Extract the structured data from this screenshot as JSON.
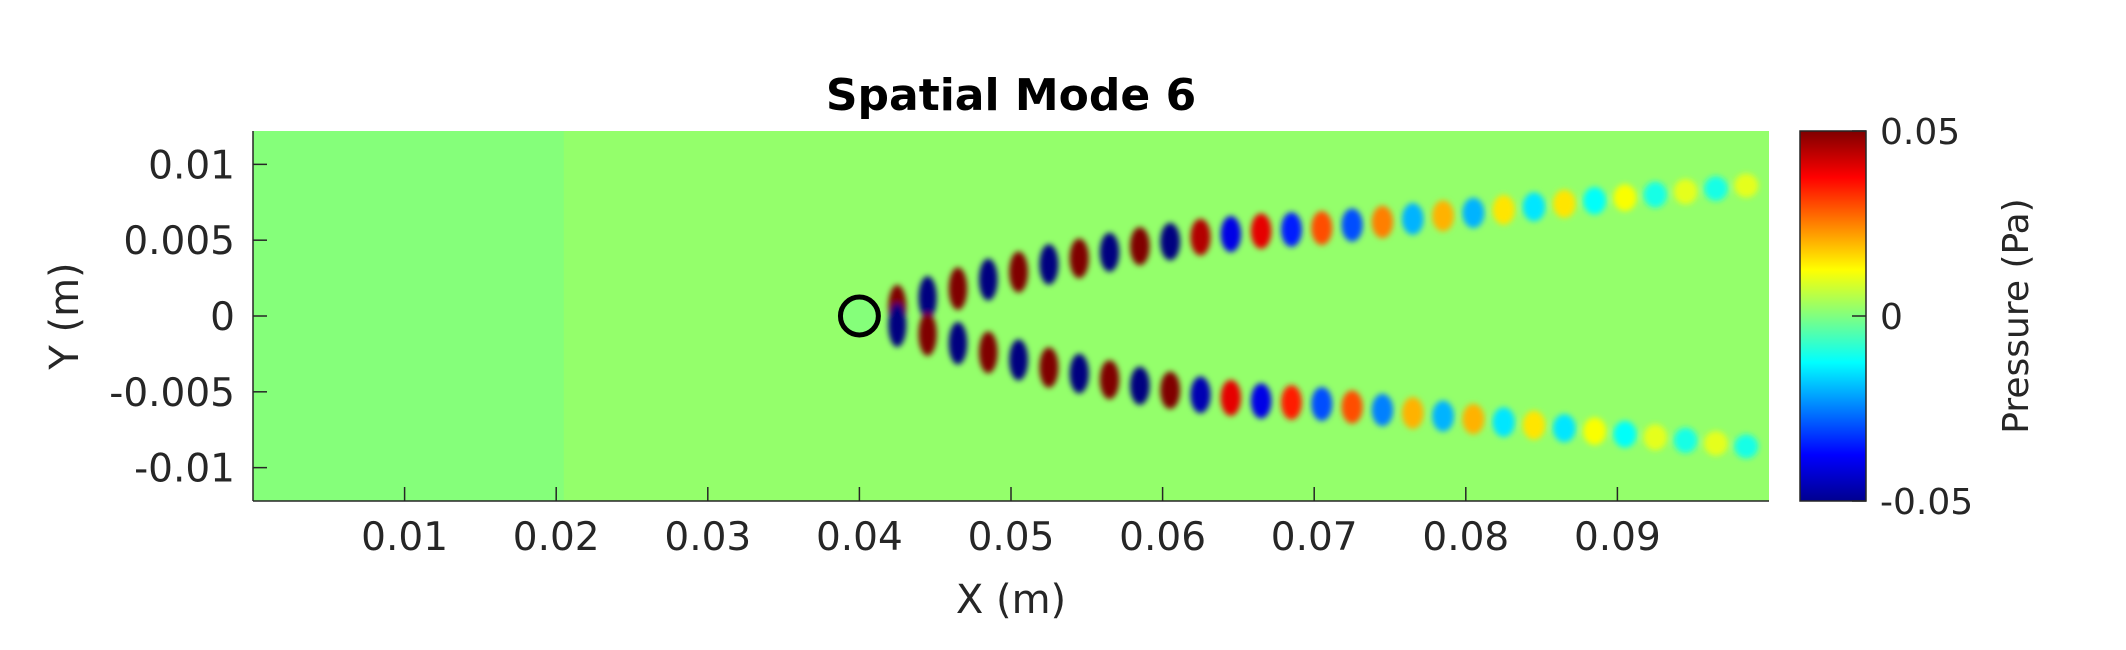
{
  "chart_data": {
    "type": "heatmap",
    "title": "Spatial Mode 6",
    "xlabel": "X (m)",
    "ylabel": "Y (m)",
    "xlim": [
      0,
      0.1
    ],
    "ylim": [
      -0.0122,
      0.0122
    ],
    "xticks": [
      0.01,
      0.02,
      0.03,
      0.04,
      0.05,
      0.06,
      0.07,
      0.08,
      0.09
    ],
    "xtick_labels": [
      "0.01",
      "0.02",
      "0.03",
      "0.04",
      "0.05",
      "0.06",
      "0.07",
      "0.08",
      "0.09"
    ],
    "yticks": [
      0.01,
      0.005,
      0,
      -0.005,
      -0.01
    ],
    "ytick_labels": [
      "0.01",
      "0.005",
      "0",
      "-0.005",
      "-0.01"
    ],
    "colormap": "jet",
    "colorbar": {
      "label": "Pressure (Pa)",
      "clim": [
        -0.05,
        0.05
      ],
      "ticks": [
        0.05,
        0,
        -0.05
      ],
      "tick_labels": [
        "0.05",
        "0",
        "-0.05"
      ]
    },
    "cylinder": {
      "x": 0.04,
      "y": 0,
      "diameter": 0.0025
    },
    "wake_rows": [
      {
        "name": "upper",
        "x": [
          0.0425,
          0.0445,
          0.0465,
          0.0485,
          0.0505,
          0.0525,
          0.0545,
          0.0565,
          0.0585,
          0.0605,
          0.0625,
          0.0645,
          0.0665,
          0.0685,
          0.0705,
          0.0725,
          0.0745,
          0.0765,
          0.0785,
          0.0805,
          0.0825,
          0.0845,
          0.0865,
          0.0885,
          0.0905,
          0.0925,
          0.0945,
          0.0965,
          0.0985
        ],
        "y": [
          0.0006,
          0.0012,
          0.0018,
          0.0024,
          0.0029,
          0.0034,
          0.0038,
          0.0042,
          0.0046,
          0.0049,
          0.0052,
          0.0054,
          0.0056,
          0.0057,
          0.0058,
          0.006,
          0.0062,
          0.0064,
          0.0066,
          0.0068,
          0.007,
          0.0072,
          0.0074,
          0.0076,
          0.0078,
          0.008,
          0.0082,
          0.0084,
          0.0086
        ],
        "values": [
          0.05,
          -0.05,
          0.05,
          -0.05,
          0.05,
          -0.05,
          0.05,
          -0.05,
          0.05,
          -0.05,
          0.045,
          -0.04,
          0.04,
          -0.035,
          0.03,
          -0.03,
          0.025,
          -0.02,
          0.02,
          -0.02,
          0.015,
          -0.015,
          0.015,
          -0.012,
          0.012,
          -0.01,
          0.01,
          -0.01,
          0.01
        ]
      },
      {
        "name": "lower",
        "x": [
          0.0425,
          0.0445,
          0.0465,
          0.0485,
          0.0505,
          0.0525,
          0.0545,
          0.0565,
          0.0585,
          0.0605,
          0.0625,
          0.0645,
          0.0665,
          0.0685,
          0.0705,
          0.0725,
          0.0745,
          0.0765,
          0.0785,
          0.0805,
          0.0825,
          0.0845,
          0.0865,
          0.0885,
          0.0905,
          0.0925,
          0.0945,
          0.0965,
          0.0985
        ],
        "y": [
          -0.0006,
          -0.0012,
          -0.0018,
          -0.0024,
          -0.0029,
          -0.0034,
          -0.0038,
          -0.0042,
          -0.0046,
          -0.0049,
          -0.0052,
          -0.0054,
          -0.0056,
          -0.0057,
          -0.0058,
          -0.006,
          -0.0062,
          -0.0064,
          -0.0066,
          -0.0068,
          -0.007,
          -0.0072,
          -0.0074,
          -0.0076,
          -0.0078,
          -0.008,
          -0.0082,
          -0.0084,
          -0.0086
        ],
        "values": [
          -0.05,
          0.05,
          -0.05,
          0.05,
          -0.05,
          0.05,
          -0.05,
          0.05,
          -0.05,
          0.05,
          -0.045,
          0.04,
          -0.04,
          0.035,
          -0.03,
          0.03,
          -0.025,
          0.02,
          -0.02,
          0.02,
          -0.015,
          0.015,
          -0.015,
          0.012,
          -0.012,
          0.01,
          -0.01,
          0.01,
          -0.01
        ]
      }
    ],
    "background_value": 0.002,
    "upstream_value": 0.0005,
    "colors": {
      "axis": "#262626",
      "cylinder": "#000000"
    }
  }
}
